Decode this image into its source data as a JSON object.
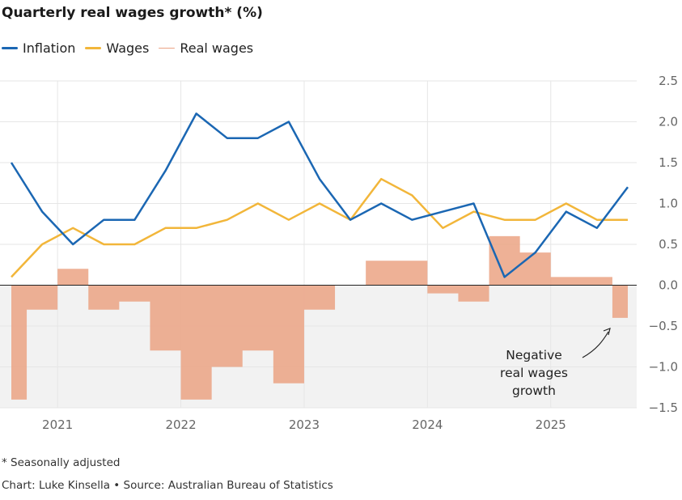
{
  "title": "Quarterly real wages growth* (%)",
  "legend": [
    {
      "label": "Inflation",
      "color": "#1b67b3",
      "thickness": 3
    },
    {
      "label": "Wages",
      "color": "#f2b63a",
      "thickness": 3
    },
    {
      "label": "Real wages",
      "color": "#eba384",
      "thickness": 1.5
    }
  ],
  "footnote": "* Seasonally adjusted",
  "credit": "Chart: Luke Kinsella • Source: Australian Bureau of Statistics",
  "annotation": [
    "Negative",
    "real wages",
    "growth"
  ],
  "colors": {
    "inflation": "#1b67b3",
    "wages": "#f2b63a",
    "real_wages_fill": "#eba384",
    "real_wages_line": "#eba384",
    "negative_band": "#f2f2f2",
    "grid": "#e6e6e6",
    "zero_line": "#222222"
  },
  "chart_data": {
    "type": "line",
    "x": [
      "2020-Q3",
      "2020-Q4",
      "2021-Q1",
      "2021-Q2",
      "2021-Q3",
      "2021-Q4",
      "2022-Q1",
      "2022-Q2",
      "2022-Q3",
      "2022-Q4",
      "2023-Q1",
      "2023-Q2",
      "2023-Q3",
      "2023-Q4",
      "2024-Q1",
      "2024-Q2",
      "2024-Q3",
      "2024-Q4",
      "2025-Q1",
      "2025-Q2",
      "2025-Q3"
    ],
    "x_tick_labels": [
      "2021",
      "2022",
      "2023",
      "2024",
      "2025"
    ],
    "y_tick_labels": [
      "2.5",
      "2.0",
      "1.5",
      "1.0",
      "0.5",
      "0.0",
      "−0.5",
      "−1.0",
      "−1.5"
    ],
    "ylim": [
      -1.5,
      2.5
    ],
    "grid": true,
    "legend_position": "top-left",
    "series": [
      {
        "name": "Inflation",
        "type": "line",
        "values": [
          1.5,
          0.9,
          0.5,
          0.8,
          0.8,
          1.4,
          2.1,
          1.8,
          1.8,
          2.0,
          1.3,
          0.8,
          1.0,
          0.8,
          0.9,
          1.0,
          0.1,
          0.4,
          0.9,
          0.7,
          1.2
        ]
      },
      {
        "name": "Wages",
        "type": "line",
        "values": [
          0.1,
          0.5,
          0.7,
          0.5,
          0.5,
          0.7,
          0.7,
          0.8,
          1.0,
          0.8,
          1.0,
          0.8,
          1.3,
          1.1,
          0.7,
          0.9,
          0.8,
          0.8,
          1.0,
          0.8,
          0.8
        ]
      },
      {
        "name": "Real wages",
        "type": "step-area",
        "values": [
          -1.4,
          -0.3,
          0.2,
          -0.3,
          -0.2,
          -0.8,
          -1.4,
          -1.0,
          -0.8,
          -1.2,
          -0.3,
          0.0,
          0.3,
          0.3,
          -0.1,
          -0.2,
          0.6,
          0.4,
          0.1,
          0.1,
          -0.4
        ]
      }
    ]
  }
}
